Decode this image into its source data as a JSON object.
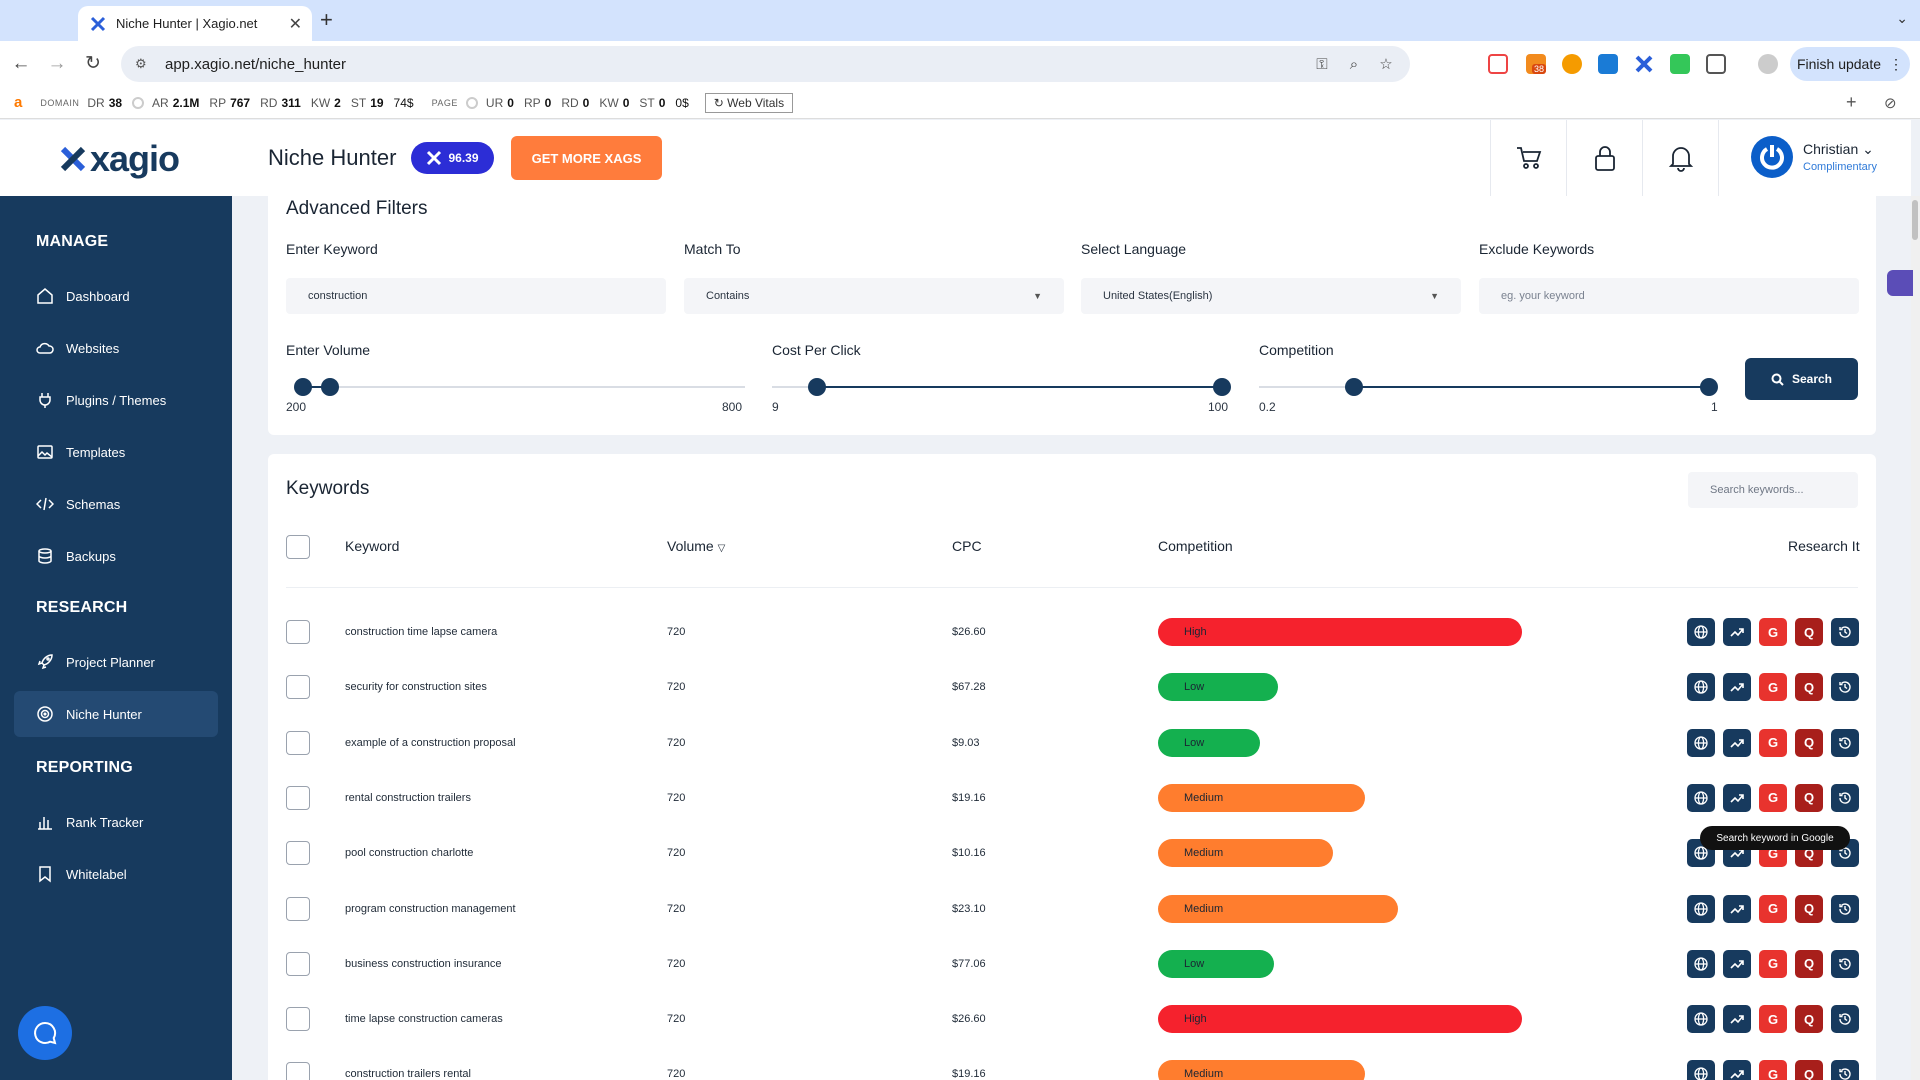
{
  "browser": {
    "tab_title": "Niche Hunter | Xagio.net",
    "url": "app.xagio.net/niche_hunter",
    "finish_update": "Finish update",
    "ext_badge": "38"
  },
  "seobar": {
    "domain_label": "DOMAIN",
    "page_label": "PAGE",
    "domain_metrics": [
      {
        "k": "DR",
        "v": "38"
      },
      {
        "k": "AR",
        "v": "2.1M"
      },
      {
        "k": "RP",
        "v": "767"
      },
      {
        "k": "RD",
        "v": "311"
      },
      {
        "k": "KW",
        "v": "2"
      },
      {
        "k": "ST",
        "v": "19"
      }
    ],
    "domain_st_extra": "74$",
    "page_metrics": [
      {
        "k": "UR",
        "v": "0"
      },
      {
        "k": "RP",
        "v": "0"
      },
      {
        "k": "RD",
        "v": "0"
      },
      {
        "k": "KW",
        "v": "0"
      },
      {
        "k": "ST",
        "v": "0"
      }
    ],
    "page_st_extra": "0$",
    "web_vitals": "Web Vitals"
  },
  "header": {
    "logo": "xagio",
    "page_title": "Niche Hunter",
    "xags_value": "96.39",
    "get_more": "GET MORE XAGS",
    "user_name": "Christian",
    "user_plan": "Complimentary"
  },
  "sidebar": {
    "manage_label": "MANAGE",
    "research_label": "RESEARCH",
    "reporting_label": "REPORTING",
    "manage_items": [
      "Dashboard",
      "Websites",
      "Plugins / Themes",
      "Templates",
      "Schemas",
      "Backups"
    ],
    "research_items": [
      "Project Planner",
      "Niche Hunter"
    ],
    "reporting_items": [
      "Rank Tracker",
      "Whitelabel"
    ],
    "active": "Niche Hunter"
  },
  "filters": {
    "title": "Advanced Filters",
    "keyword_label": "Enter Keyword",
    "keyword_value": "construction",
    "match_label": "Match To",
    "match_value": "Contains",
    "language_label": "Select Language",
    "language_value": "United States(English)",
    "exclude_label": "Exclude Keywords",
    "exclude_placeholder": "eg. your keyword",
    "volume_label": "Enter Volume",
    "volume_min": "200",
    "volume_max": "800",
    "volume_range": [
      0.0,
      0.06
    ],
    "cpc_label": "Cost Per Click",
    "cpc_min": "9",
    "cpc_max": "100",
    "cpc_range": [
      0.1,
      1.0
    ],
    "competition_label": "Competition",
    "competition_min": "0.2",
    "competition_max": "1",
    "competition_range": [
      0.21,
      1.0
    ],
    "search_button": "Search"
  },
  "keywords": {
    "title": "Keywords",
    "search_placeholder": "Search keywords...",
    "columns": {
      "keyword": "Keyword",
      "volume": "Volume",
      "cpc": "CPC",
      "competition": "Competition",
      "research": "Research It"
    },
    "tooltip": "Search keyword in Google",
    "rows": [
      {
        "keyword": "construction time lapse camera",
        "volume": "720",
        "cpc": "$26.60",
        "competition": "High",
        "level": 1.0
      },
      {
        "keyword": "security for construction sites",
        "volume": "720",
        "cpc": "$67.28",
        "competition": "Low",
        "level": 0.33
      },
      {
        "keyword": "example of a construction proposal",
        "volume": "720",
        "cpc": "$9.03",
        "competition": "Low",
        "level": 0.28
      },
      {
        "keyword": "rental construction trailers",
        "volume": "720",
        "cpc": "$19.16",
        "competition": "Medium",
        "level": 0.57
      },
      {
        "keyword": "pool construction charlotte",
        "volume": "720",
        "cpc": "$10.16",
        "competition": "Medium",
        "level": 0.48
      },
      {
        "keyword": "program construction management",
        "volume": "720",
        "cpc": "$23.10",
        "competition": "Medium",
        "level": 0.66
      },
      {
        "keyword": "business construction insurance",
        "volume": "720",
        "cpc": "$77.06",
        "competition": "Low",
        "level": 0.32
      },
      {
        "keyword": "time lapse construction cameras",
        "volume": "720",
        "cpc": "$26.60",
        "competition": "High",
        "level": 1.0
      },
      {
        "keyword": "construction trailers rental",
        "volume": "720",
        "cpc": "$19.16",
        "competition": "Medium",
        "level": 0.57
      }
    ]
  },
  "colors": {
    "navy": "#173a5e",
    "orange": "#ff7c3c",
    "high": "#f5222d",
    "low": "#14b04f",
    "medium": "#ff7d2e"
  }
}
